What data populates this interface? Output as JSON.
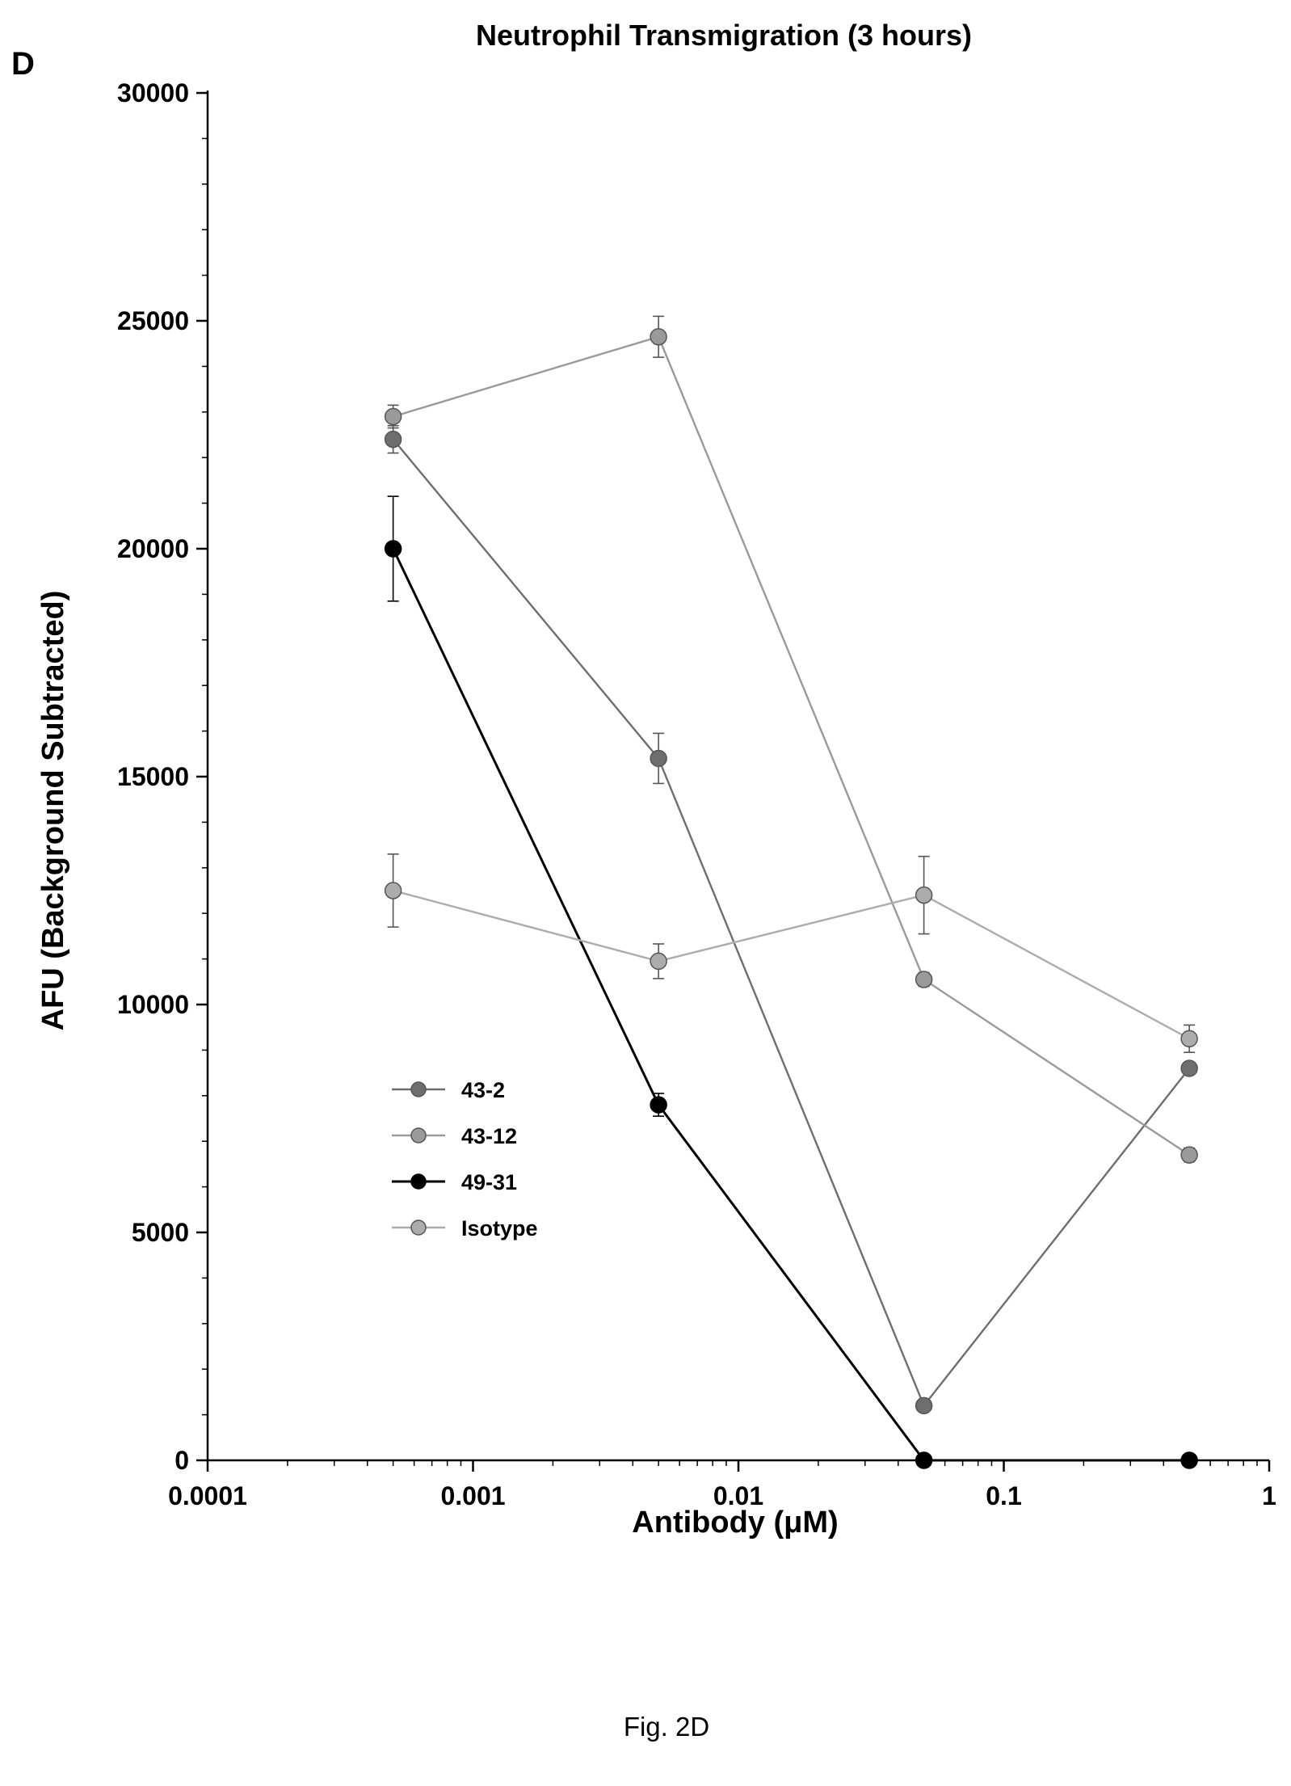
{
  "panel_letter": "D",
  "caption": "Fig. 2D",
  "chart_data": {
    "type": "line",
    "title": "Neutrophil Transmigration (3 hours)",
    "xlabel": "Antibody (μM)",
    "ylabel": "AFU (Background Subtracted)",
    "x_scale": "log",
    "xlim": [
      0.0001,
      1
    ],
    "ylim": [
      0,
      30000
    ],
    "x_ticks": [
      {
        "value": 0.0001,
        "label": "0.0001"
      },
      {
        "value": 0.001,
        "label": "0.001"
      },
      {
        "value": 0.01,
        "label": "0.01"
      },
      {
        "value": 0.1,
        "label": "0.1"
      },
      {
        "value": 1,
        "label": "1"
      }
    ],
    "y_ticks": [
      {
        "value": 0,
        "label": "0"
      },
      {
        "value": 5000,
        "label": "5000"
      },
      {
        "value": 10000,
        "label": "10000"
      },
      {
        "value": 15000,
        "label": "15000"
      },
      {
        "value": 20000,
        "label": "20000"
      },
      {
        "value": 25000,
        "label": "25000"
      },
      {
        "value": 30000,
        "label": "30000"
      }
    ],
    "grid": false,
    "legend_position": "lower-left",
    "x": [
      0.0005,
      0.005,
      0.05,
      0.5
    ],
    "series": [
      {
        "name": "43-2",
        "color": "#6e6e6e",
        "values": [
          22400,
          15400,
          1200,
          8600
        ],
        "errors": [
          300,
          550,
          0,
          0
        ]
      },
      {
        "name": "43-12",
        "color": "#9a9a9a",
        "values": [
          22900,
          24650,
          10550,
          6700
        ],
        "errors": [
          250,
          450,
          150,
          150
        ]
      },
      {
        "name": "49-31",
        "color": "#000000",
        "values": [
          20000,
          7800,
          0,
          0
        ],
        "errors": [
          1150,
          250,
          0,
          0
        ]
      },
      {
        "name": "Isotype",
        "color": "#acacac",
        "values": [
          12500,
          10950,
          12400,
          9250
        ],
        "errors": [
          800,
          380,
          850,
          300
        ]
      }
    ]
  }
}
